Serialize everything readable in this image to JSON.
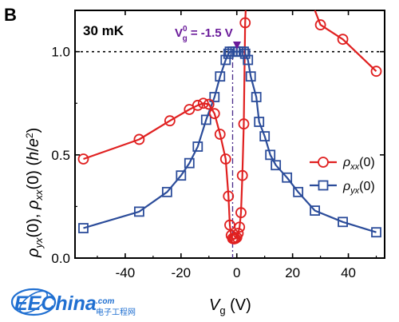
{
  "panel_label": "B",
  "watermark": {
    "brand": "EEChina",
    "suffix": ".com",
    "subtitle": "电子工程网"
  },
  "colors": {
    "rho_xx": "#e02020",
    "rho_yx": "#2b4c9a",
    "vg_annotation": "#6a1b9a",
    "reference_line": "#000000",
    "vline": "#4a2a8a",
    "watermark": "#1f6fd1"
  },
  "chart_data": {
    "type": "line",
    "title": "",
    "xlabel": "V_g (V)",
    "xlabel_main": "V",
    "xlabel_sub": "g",
    "xlabel_unit": " (V)",
    "ylabel": "ρ_yx(0), ρ_xx(0) (h/e²)",
    "xlim": [
      -58,
      53
    ],
    "ylim": [
      0.0,
      1.2
    ],
    "xticks": [
      -40,
      -20,
      0,
      20,
      40
    ],
    "yticks": [
      0.0,
      0.5,
      1.0
    ],
    "ytick_labels": [
      "0.0",
      "0.5",
      "1.0"
    ],
    "grid": false,
    "legend_position": "right",
    "annotations": {
      "temperature": "30 mK",
      "vg0_main": "V",
      "vg0_sub": "g",
      "vg0_sup": "0",
      "vg0_value": " = -1.5 V"
    },
    "reference_lines": [
      {
        "orientation": "horizontal",
        "value": 1.0,
        "style": "dotted"
      },
      {
        "orientation": "vertical",
        "value": -1.5,
        "style": "dash-dot"
      }
    ],
    "series": [
      {
        "name": "ρ_xx(0)",
        "name_main": "ρ",
        "name_sub": "xx",
        "name_tail": "(0)",
        "marker": "circle",
        "color": "#e02020",
        "points": [
          [
            -55,
            0.48
          ],
          [
            -35,
            0.575
          ],
          [
            -24,
            0.665
          ],
          [
            -17,
            0.72
          ],
          [
            -14,
            0.74
          ],
          [
            -12,
            0.75
          ],
          [
            -10,
            0.745
          ],
          [
            -8,
            0.7
          ],
          [
            -6,
            0.6
          ],
          [
            -4,
            0.48
          ],
          [
            -3,
            0.3
          ],
          [
            -2.5,
            0.16
          ],
          [
            -2,
            0.11
          ],
          [
            -1.5,
            0.095
          ],
          [
            -1,
            0.093
          ],
          [
            -0.5,
            0.095
          ],
          [
            0,
            0.1
          ],
          [
            0.5,
            0.12
          ],
          [
            1,
            0.15
          ],
          [
            1.5,
            0.22
          ],
          [
            2,
            0.4
          ],
          [
            2.5,
            0.65
          ],
          [
            3,
            1.14
          ],
          [
            3.2,
            1.2
          ]
        ],
        "points_upper_branch": [
          [
            28,
            1.2
          ],
          [
            30,
            1.13
          ],
          [
            38,
            1.06
          ],
          [
            50,
            0.905
          ]
        ]
      },
      {
        "name": "ρ_yx(0)",
        "name_main": "ρ",
        "name_sub": "yx",
        "name_tail": "(0)",
        "marker": "square",
        "color": "#2b4c9a",
        "points": [
          [
            -55,
            0.145
          ],
          [
            -35,
            0.225
          ],
          [
            -25,
            0.32
          ],
          [
            -20,
            0.4
          ],
          [
            -17,
            0.46
          ],
          [
            -14,
            0.54
          ],
          [
            -11,
            0.67
          ],
          [
            -8,
            0.78
          ],
          [
            -6,
            0.88
          ],
          [
            -4,
            0.96
          ],
          [
            -3,
            0.99
          ],
          [
            -2.5,
            1.0
          ],
          [
            -1.5,
            1.0
          ],
          [
            -0.5,
            1.0
          ],
          [
            0.5,
            1.0
          ],
          [
            1.5,
            1.0
          ],
          [
            2.5,
            1.0
          ],
          [
            3,
            0.99
          ],
          [
            4,
            0.96
          ],
          [
            5,
            0.88
          ],
          [
            7,
            0.78
          ],
          [
            8,
            0.66
          ],
          [
            10,
            0.59
          ],
          [
            12,
            0.5
          ],
          [
            14,
            0.45
          ],
          [
            18,
            0.39
          ],
          [
            22,
            0.32
          ],
          [
            28,
            0.23
          ],
          [
            38,
            0.175
          ],
          [
            50,
            0.125
          ]
        ]
      }
    ]
  }
}
